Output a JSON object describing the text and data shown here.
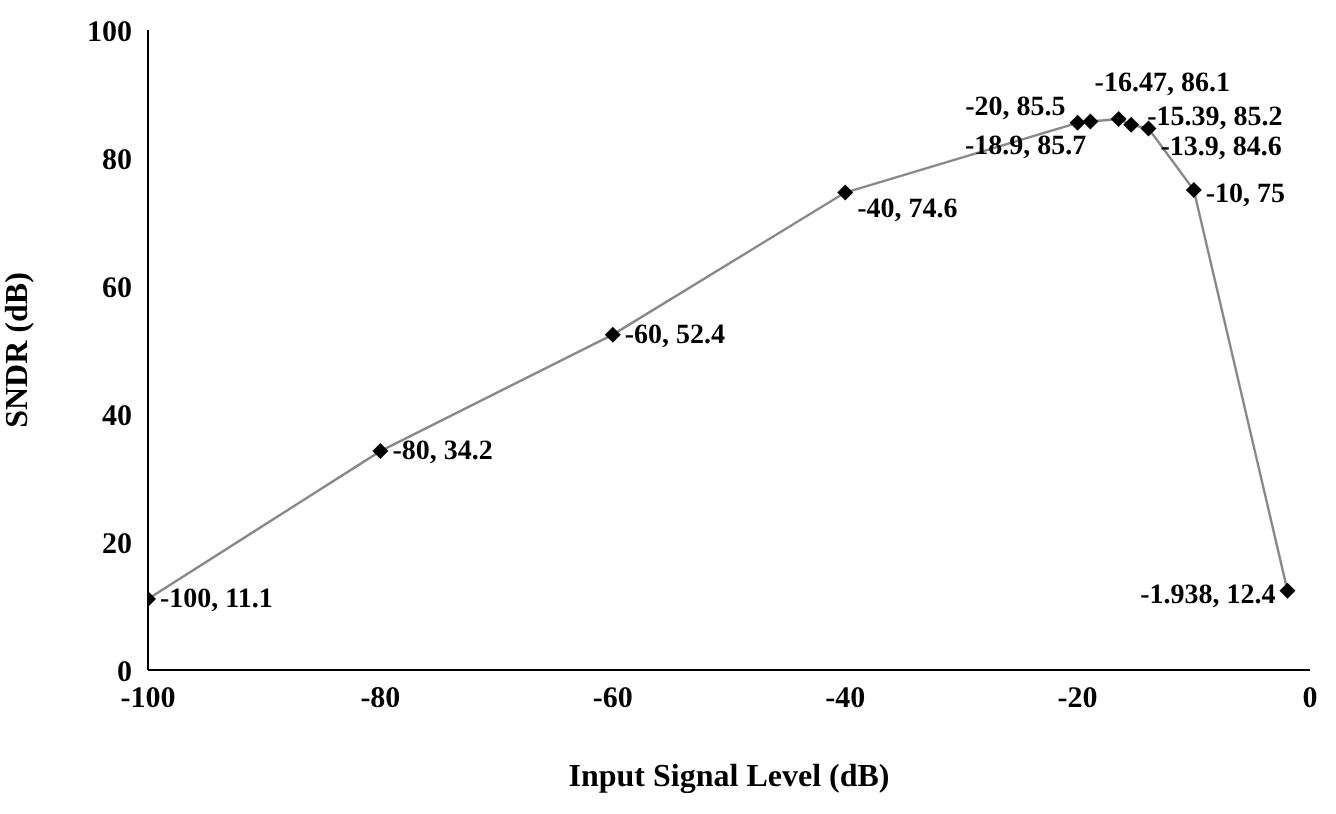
{
  "chart_data": {
    "type": "line",
    "xlabel": "Input Signal Level (dB)",
    "ylabel": "SNDR (dB)",
    "x": [
      -100,
      -80,
      -60,
      -40,
      -20,
      -18.9,
      -16.47,
      -15.39,
      -13.9,
      -10,
      -1.938
    ],
    "values": [
      11.1,
      34.2,
      52.4,
      74.6,
      85.5,
      85.7,
      86.1,
      85.2,
      84.6,
      75,
      12.4
    ],
    "value_labels": [
      "-100, 11.1",
      "-80, 34.2",
      "-60, 52.4",
      "-40, 74.6",
      "-20, 85.5",
      "-18.9, 85.7",
      "-16.47, 86.1",
      "-15.39, 85.2",
      "-13.9, 84.6",
      "-10, 75",
      "-1.938, 12.4"
    ],
    "color": "#888888",
    "marker": "diamond",
    "line_style": "solid",
    "xlim": [
      -100,
      0
    ],
    "xticks": [
      -100,
      -80,
      -60,
      -40,
      -20,
      0
    ],
    "ylim": [
      0,
      100
    ],
    "yticks": [
      0,
      20,
      40,
      60,
      80,
      100
    ],
    "grid": false,
    "legend": false
  }
}
